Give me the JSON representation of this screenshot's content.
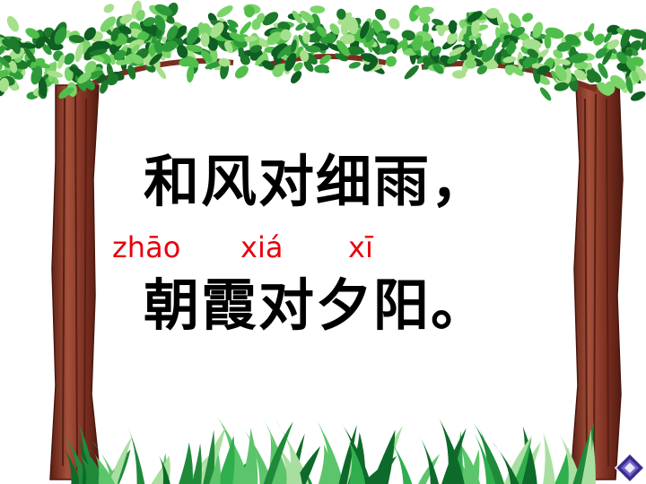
{
  "poem": {
    "line1": "和风对细雨，",
    "line2": "朝霞对夕阳。"
  },
  "pinyin": {
    "zhao": "zhāo",
    "xia": "xiá",
    "xi": "xī"
  },
  "colors": {
    "text": "#000000",
    "pinyin": "#e8000d",
    "trunk": "#8b3a2a",
    "leaf": "#2e9b3a",
    "grass": "#1f8a3a",
    "nav_button": "#3a2b8c"
  },
  "icons": {
    "nav": "diamond-next-icon"
  }
}
